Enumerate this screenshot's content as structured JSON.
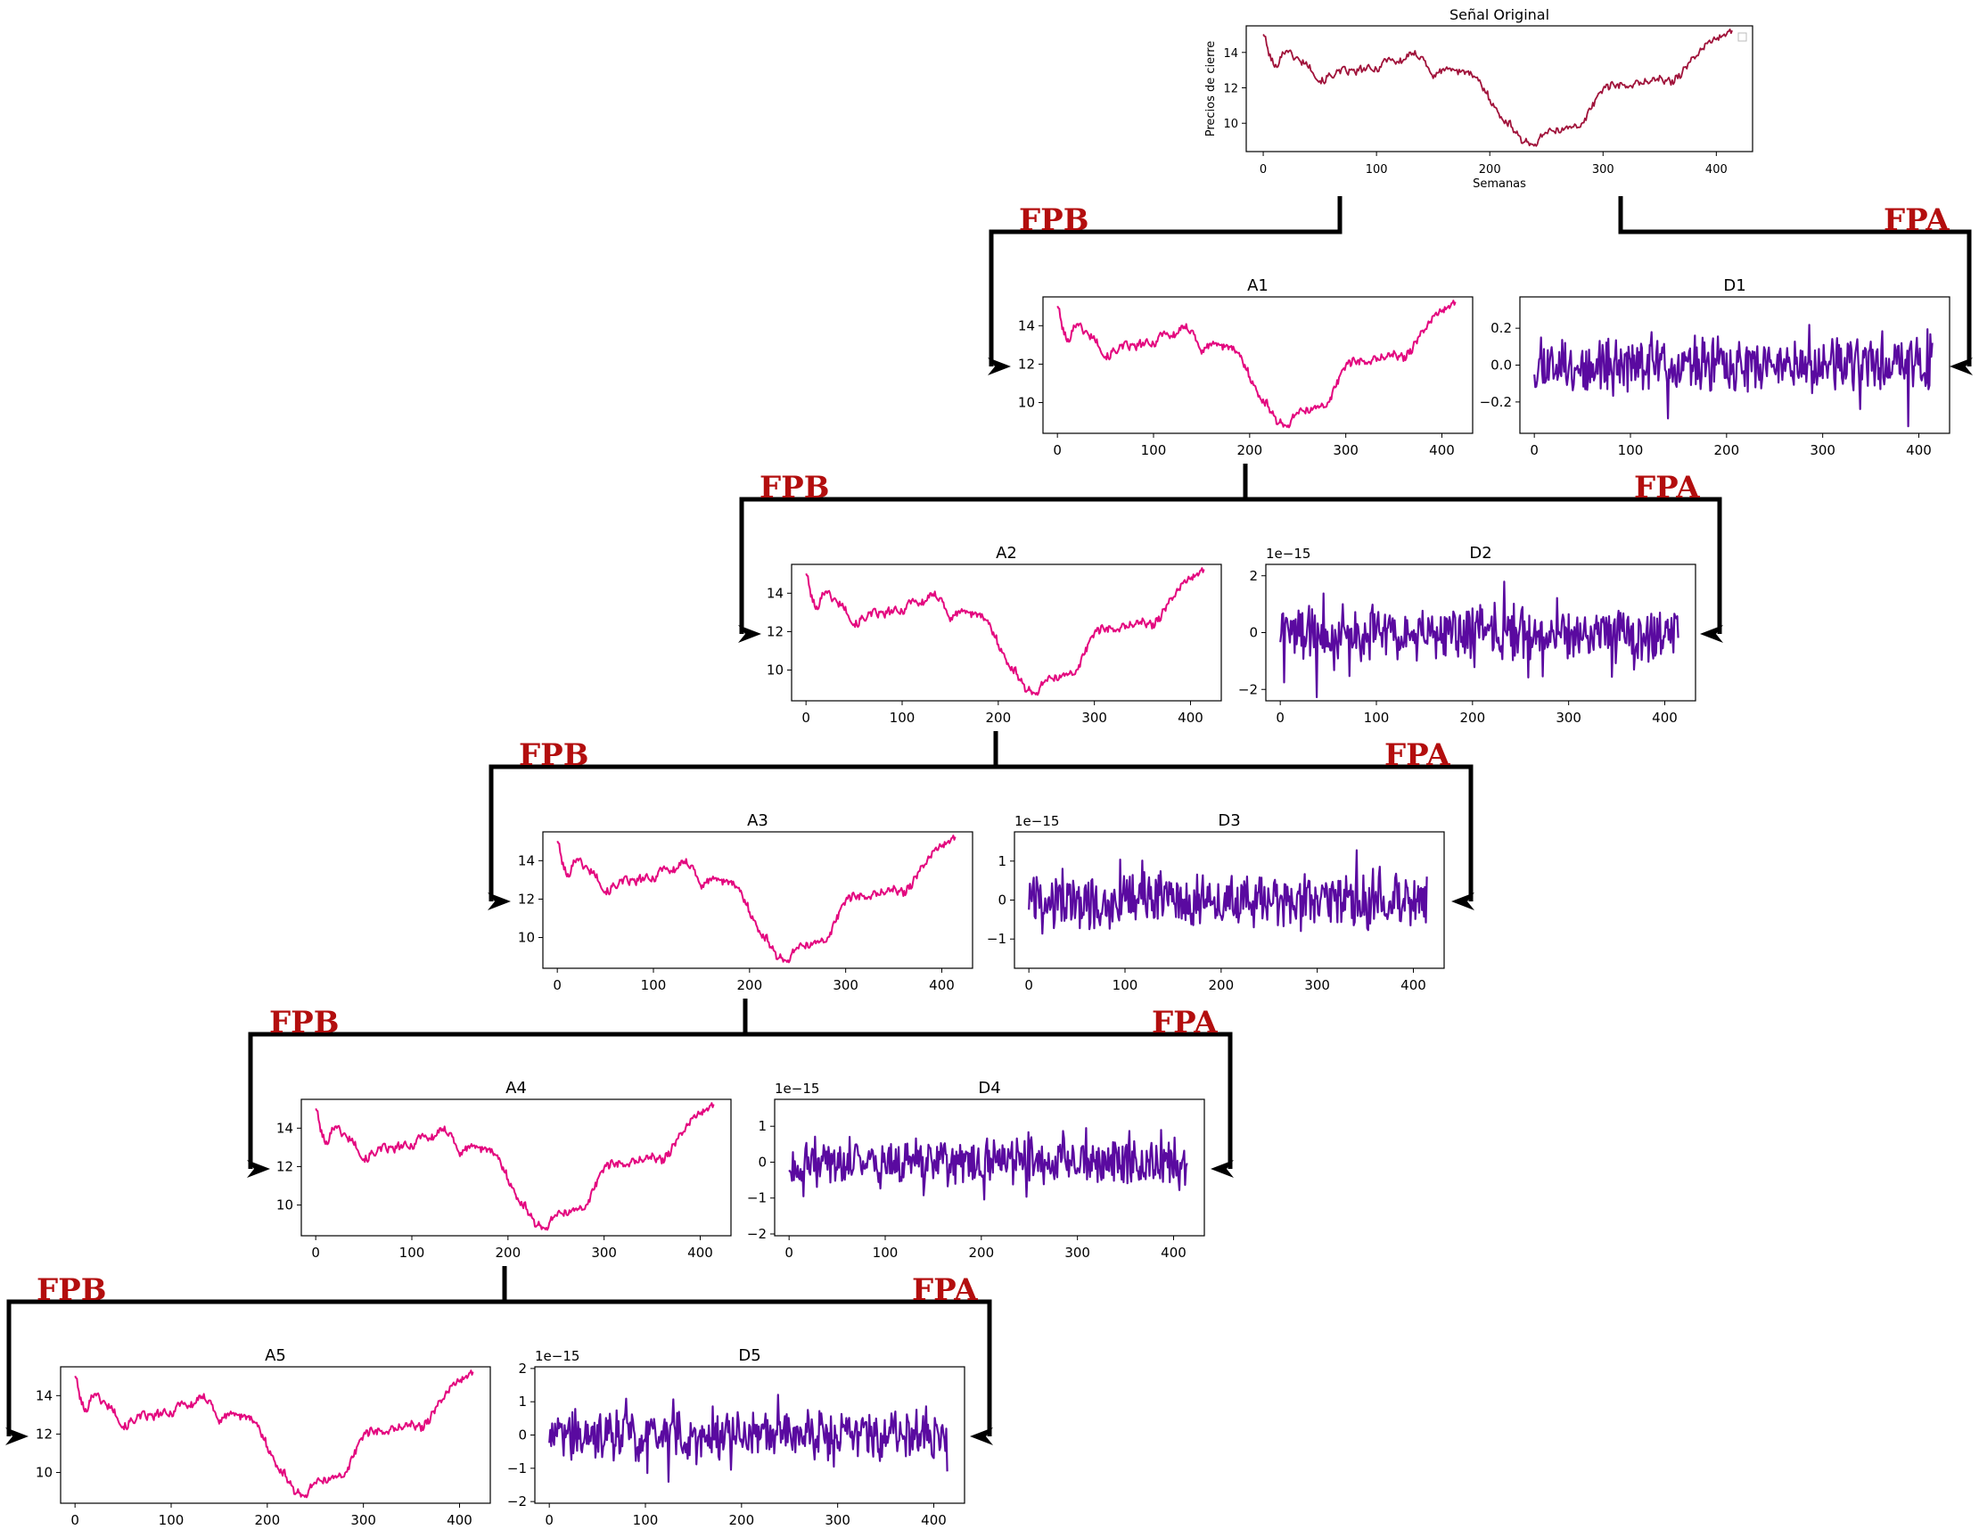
{
  "labels": {
    "low": "FPB",
    "high": "FPA"
  },
  "colors": {
    "label": "#b30e0e",
    "tree": "#000000",
    "approx": "#e3087f",
    "detail": "#5a0aa0",
    "original": "#a0123a"
  },
  "chart_data": [
    {
      "id": "orig",
      "type": "line",
      "title": "Señal Original",
      "xlabel": "Semanas",
      "ylabel": "Precios de cierre",
      "xlim": [
        -15,
        432
      ],
      "ylim": [
        8.4,
        15.5
      ],
      "xticks": [
        0,
        100,
        200,
        300,
        400
      ],
      "yticks": [
        10,
        12,
        14
      ],
      "ytick_labels": [
        "10",
        "12",
        "14"
      ],
      "offset": "",
      "legend": "top-right (empty)",
      "series": [
        {
          "kind": "approx",
          "n": 415,
          "seed": 101,
          "amp": 0
        }
      ]
    },
    {
      "id": "A1",
      "type": "line",
      "title": "A1",
      "xlim": [
        -15,
        432
      ],
      "ylim": [
        8.4,
        15.5
      ],
      "xticks": [
        0,
        100,
        200,
        300,
        400
      ],
      "yticks": [
        10,
        12,
        14
      ],
      "ytick_labels": [
        "10",
        "12",
        "14"
      ],
      "offset": "",
      "series": [
        {
          "kind": "approx",
          "n": 415,
          "seed": 101,
          "amp": 0
        }
      ]
    },
    {
      "id": "D1",
      "type": "line",
      "title": "D1",
      "xlim": [
        -15,
        432
      ],
      "ylim": [
        -0.37,
        0.37
      ],
      "xticks": [
        0,
        100,
        200,
        300,
        400
      ],
      "yticks": [
        -0.2,
        0.0,
        0.2
      ],
      "ytick_labels": [
        "−0.2",
        "0.0",
        "0.2"
      ],
      "offset": "",
      "series": [
        {
          "kind": "detail",
          "n": 415,
          "seed": 11,
          "amp": 0.12,
          "max": 0.35
        }
      ]
    },
    {
      "id": "A2",
      "type": "line",
      "title": "A2",
      "xlim": [
        -15,
        432
      ],
      "ylim": [
        8.4,
        15.5
      ],
      "xticks": [
        0,
        100,
        200,
        300,
        400
      ],
      "yticks": [
        10,
        12,
        14
      ],
      "ytick_labels": [
        "10",
        "12",
        "14"
      ],
      "offset": "",
      "series": [
        {
          "kind": "approx",
          "n": 415,
          "seed": 101,
          "amp": 0
        }
      ]
    },
    {
      "id": "D2",
      "type": "line",
      "title": "D2",
      "xlim": [
        -15,
        432
      ],
      "ylim": [
        -2.4,
        2.4
      ],
      "xticks": [
        0,
        100,
        200,
        300,
        400
      ],
      "yticks": [
        -2,
        0,
        2
      ],
      "ytick_labels": [
        "−2",
        "0",
        "2"
      ],
      "offset": "1e−15",
      "series": [
        {
          "kind": "detail",
          "n": 415,
          "seed": 22,
          "amp": 0.8,
          "max": 2.3
        }
      ]
    },
    {
      "id": "A3",
      "type": "line",
      "title": "A3",
      "xlim": [
        -15,
        432
      ],
      "ylim": [
        8.4,
        15.5
      ],
      "xticks": [
        0,
        100,
        200,
        300,
        400
      ],
      "yticks": [
        10,
        12,
        14
      ],
      "ytick_labels": [
        "10",
        "12",
        "14"
      ],
      "offset": "",
      "series": [
        {
          "kind": "approx",
          "n": 415,
          "seed": 101,
          "amp": 0
        }
      ]
    },
    {
      "id": "D3",
      "type": "line",
      "title": "D3",
      "xlim": [
        -15,
        432
      ],
      "ylim": [
        -1.75,
        1.75
      ],
      "xticks": [
        0,
        100,
        200,
        300,
        400
      ],
      "yticks": [
        -1,
        0,
        1
      ],
      "ytick_labels": [
        "−1",
        "0",
        "1"
      ],
      "offset": "1e−15",
      "series": [
        {
          "kind": "detail",
          "n": 415,
          "seed": 33,
          "amp": 0.6,
          "max": 1.6
        }
      ]
    },
    {
      "id": "A4",
      "type": "line",
      "title": "A4",
      "xlim": [
        -15,
        432
      ],
      "ylim": [
        8.4,
        15.5
      ],
      "xticks": [
        0,
        100,
        200,
        300,
        400
      ],
      "yticks": [
        10,
        12,
        14
      ],
      "ytick_labels": [
        "10",
        "12",
        "14"
      ],
      "offset": "",
      "series": [
        {
          "kind": "approx",
          "n": 415,
          "seed": 101,
          "amp": 0
        }
      ]
    },
    {
      "id": "D4",
      "type": "line",
      "title": "D4",
      "xlim": [
        -15,
        432
      ],
      "ylim": [
        -2.05,
        1.75
      ],
      "xticks": [
        0,
        100,
        200,
        300,
        400
      ],
      "yticks": [
        -2,
        -1,
        0,
        1
      ],
      "ytick_labels": [
        "−2",
        "−1",
        "0",
        "1"
      ],
      "offset": "1e−15",
      "series": [
        {
          "kind": "detail",
          "n": 415,
          "seed": 44,
          "amp": 0.55,
          "max": 1.8
        }
      ]
    },
    {
      "id": "A5",
      "type": "line",
      "title": "A5",
      "xlim": [
        -15,
        432
      ],
      "ylim": [
        8.4,
        15.5
      ],
      "xticks": [
        0,
        100,
        200,
        300,
        400
      ],
      "yticks": [
        10,
        12,
        14
      ],
      "ytick_labels": [
        "10",
        "12",
        "14"
      ],
      "offset": "",
      "series": [
        {
          "kind": "approx",
          "n": 415,
          "seed": 101,
          "amp": 0
        }
      ]
    },
    {
      "id": "D5",
      "type": "line",
      "title": "D5",
      "xlim": [
        -15,
        432
      ],
      "ylim": [
        -2.05,
        2.05
      ],
      "xticks": [
        0,
        100,
        200,
        300,
        400
      ],
      "yticks": [
        -2,
        -1,
        0,
        1,
        2
      ],
      "ytick_labels": [
        "−2",
        "−1",
        "0",
        "1",
        "2"
      ],
      "offset": "1e−15",
      "series": [
        {
          "kind": "detail",
          "n": 415,
          "seed": 55,
          "amp": 0.6,
          "max": 1.9
        }
      ]
    }
  ],
  "approx_anchors": {
    "x": [
      0,
      4,
      10,
      20,
      30,
      40,
      50,
      60,
      70,
      80,
      90,
      100,
      110,
      120,
      130,
      140,
      150,
      160,
      170,
      180,
      190,
      200,
      210,
      220,
      230,
      240,
      250,
      260,
      270,
      280,
      290,
      300,
      310,
      320,
      330,
      340,
      350,
      360,
      370,
      380,
      390,
      400,
      410,
      415
    ],
    "y": [
      15.1,
      14.2,
      13.1,
      14.2,
      13.6,
      13.3,
      12.3,
      12.7,
      13.0,
      12.9,
      13.1,
      13.0,
      13.7,
      13.4,
      13.9,
      13.8,
      12.6,
      13.1,
      13.0,
      12.9,
      12.4,
      11.4,
      10.3,
      9.8,
      8.9,
      8.8,
      9.6,
      9.5,
      9.9,
      9.7,
      11.0,
      12.0,
      12.2,
      12.1,
      12.2,
      12.4,
      12.5,
      12.3,
      12.9,
      13.7,
      14.4,
      14.8,
      15.1,
      15.2
    ]
  }
}
